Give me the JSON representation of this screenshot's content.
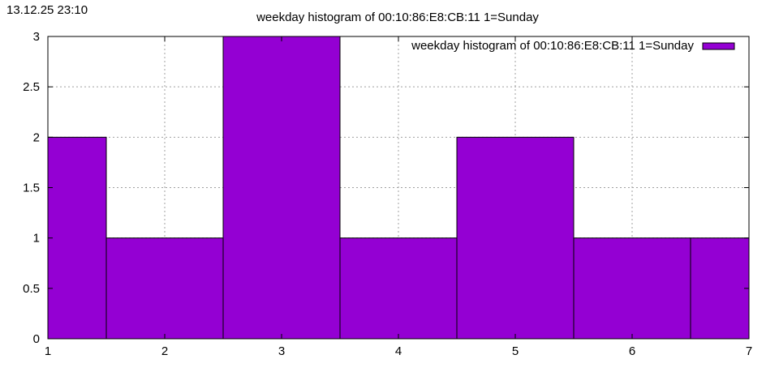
{
  "timestamp": "13.12.25 23:10",
  "chart_data": {
    "type": "bar",
    "title": "weekday histogram of 00:10:86:E8:CB:11 1=Sunday",
    "legend": {
      "label": "weekday histogram of 00:10:86:E8:CB:11 1=Sunday",
      "position": "top-right"
    },
    "bar_color": "#9400d3",
    "x": [
      1,
      2,
      3,
      4,
      5,
      6,
      7
    ],
    "values": [
      2,
      1,
      3,
      1,
      2,
      1,
      1
    ],
    "xlim": [
      1,
      7
    ],
    "ylim": [
      0,
      3
    ],
    "xticks": [
      "1",
      "2",
      "3",
      "4",
      "5",
      "6",
      "7"
    ],
    "yticks": [
      "0",
      "0.5",
      "1",
      "1.5",
      "2",
      "2.5",
      "3"
    ],
    "grid": true
  }
}
